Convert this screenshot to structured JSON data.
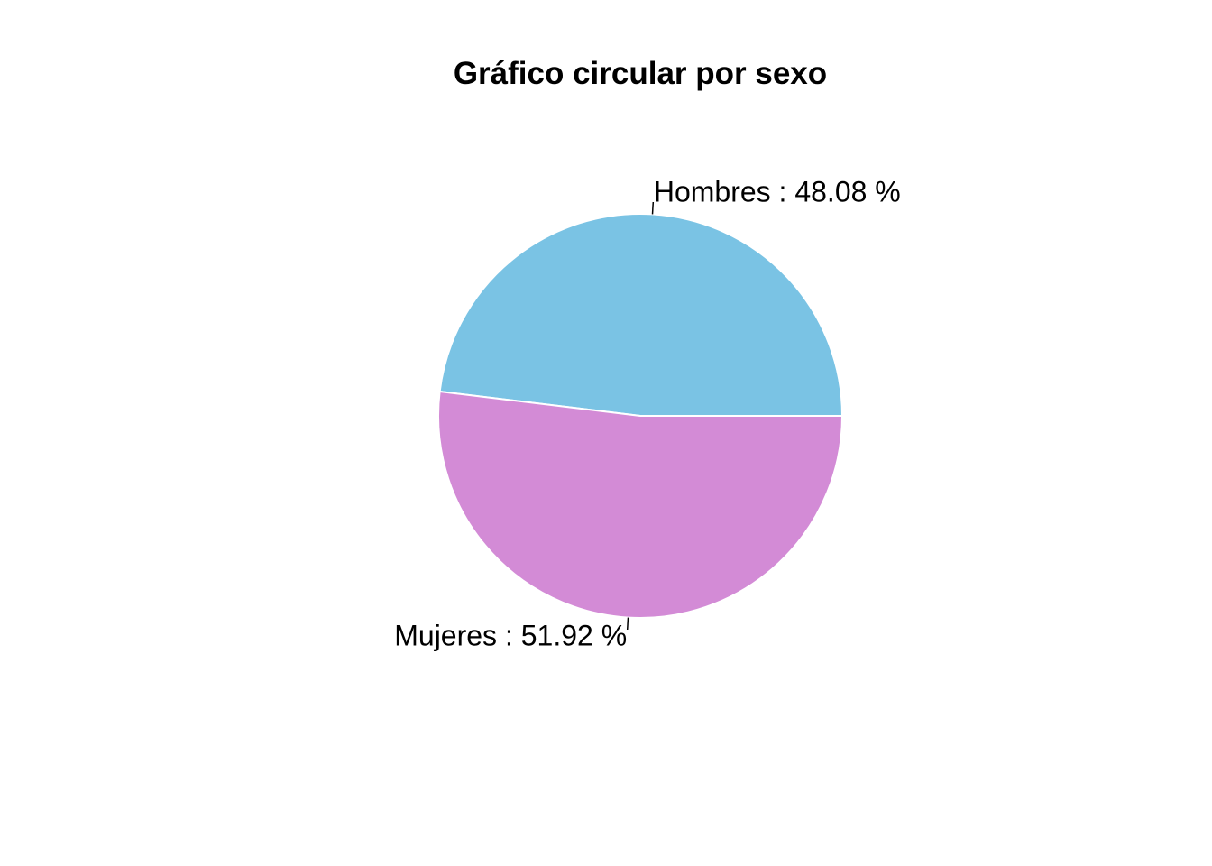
{
  "chart_data": {
    "type": "pie",
    "title": "Gráfico circular por sexo",
    "slices": [
      {
        "name": "Hombres",
        "value": 48.08,
        "label": "Hombres : 48.08 %",
        "color": "#7AC3E4"
      },
      {
        "name": "Mujeres",
        "value": 51.92,
        "label": "Mujeres : 51.92 %",
        "color": "#D38BD6"
      }
    ],
    "start_angle_deg": 0,
    "direction": "counterclockwise",
    "legend": "none"
  }
}
